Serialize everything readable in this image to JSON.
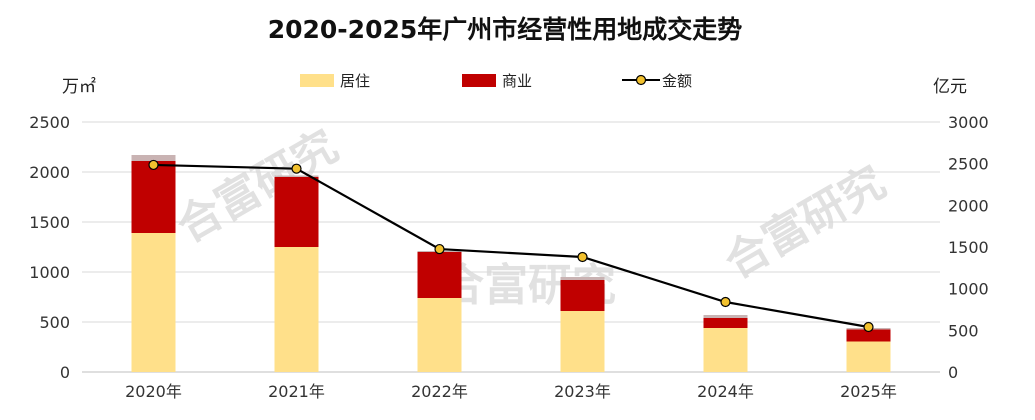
{
  "chart_data": {
    "type": "bar",
    "title": "2020-2025年广州市经营性用地成交走势",
    "left_unit": "万㎡",
    "right_unit": "亿元",
    "categories": [
      "2020年",
      "2021年",
      "2022年",
      "2023年",
      "2024年",
      "2025年"
    ],
    "series": [
      {
        "name": "居住",
        "chart": "stacked-bar",
        "axis": "left",
        "color": "#FFE08A",
        "values": [
          1390,
          1250,
          740,
          610,
          440,
          305
        ]
      },
      {
        "name": "商业",
        "chart": "stacked-bar",
        "axis": "left",
        "color": "#C00000",
        "values": [
          720,
          700,
          460,
          310,
          100,
          120
        ]
      },
      {
        "name": "",
        "chart": "stacked-bar",
        "axis": "left",
        "color": "#C9B3B3",
        "values": [
          60,
          15,
          10,
          30,
          30,
          15
        ]
      },
      {
        "name": "金额",
        "chart": "line",
        "axis": "right",
        "color": "#000000",
        "marker_color": "#F2C12E",
        "values": [
          2485,
          2440,
          1475,
          1380,
          840,
          540
        ]
      }
    ],
    "y_left": {
      "min": 0,
      "max": 2500,
      "ticks": [
        0,
        500,
        1000,
        1500,
        2000,
        2500
      ]
    },
    "y_right": {
      "min": 0,
      "max": 3000,
      "ticks": [
        0,
        500,
        1000,
        1500,
        2000,
        2500,
        3000
      ]
    },
    "grid": true,
    "legend_position": "top"
  },
  "watermark": "合富研究"
}
